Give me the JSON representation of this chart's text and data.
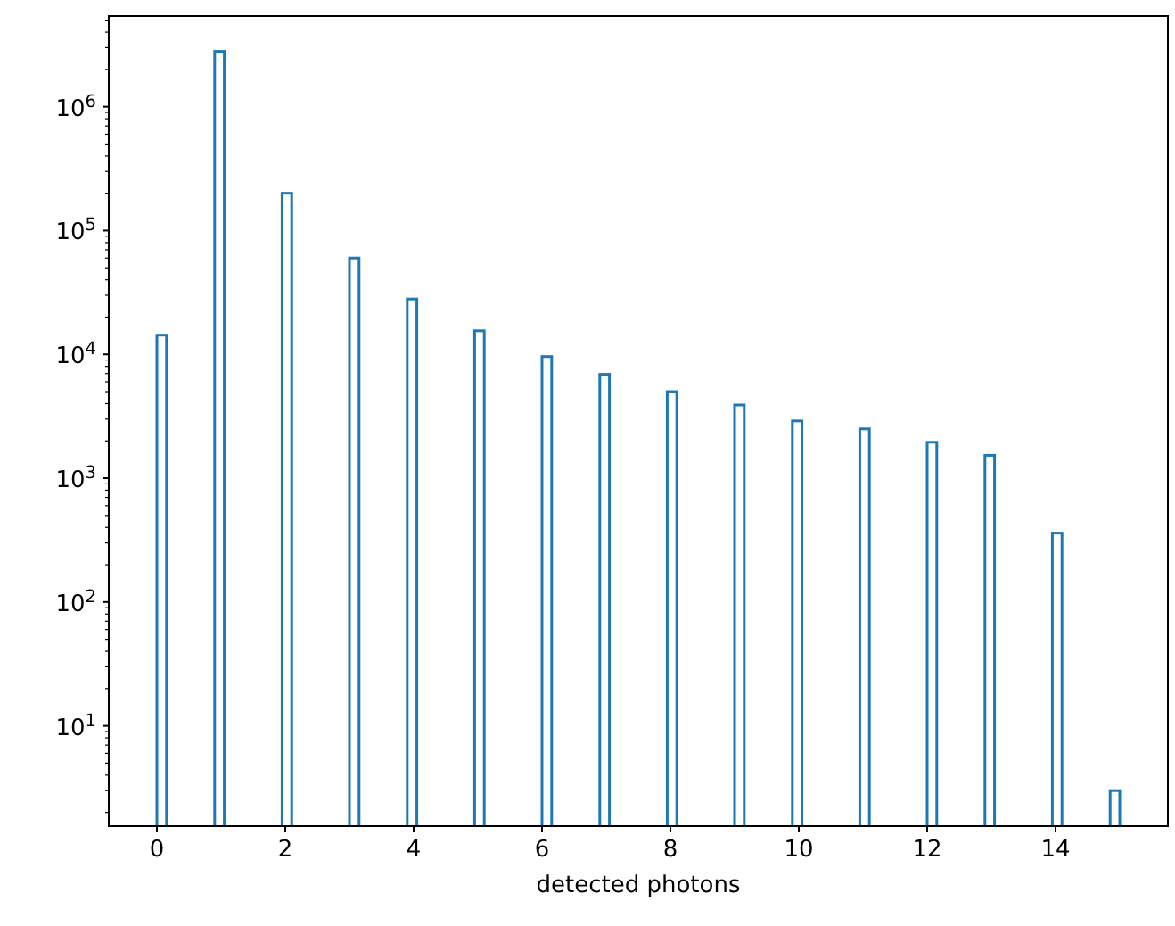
{
  "chart_data": {
    "type": "histogram",
    "xlabel": "detected photons",
    "color": "#1f77b4",
    "log": "y",
    "grid": false,
    "bins": [
      0,
      0.15,
      0.9,
      1.05,
      1.95,
      2.1,
      3.0,
      3.15,
      3.9,
      4.05,
      4.95,
      5.1,
      6.0,
      6.15,
      6.9,
      7.05,
      7.95,
      8.1,
      9.0,
      9.15,
      9.9,
      10.05,
      10.95,
      11.1,
      12.0,
      12.15,
      12.9,
      13.05,
      13.95,
      14.1,
      14.85,
      15
    ],
    "values": [
      14300,
      null,
      2800000,
      null,
      200000,
      null,
      60000,
      null,
      28000,
      null,
      15500,
      null,
      9600,
      null,
      6900,
      null,
      5000,
      null,
      3900,
      null,
      2900,
      null,
      2500,
      null,
      1950,
      null,
      1530,
      null,
      360,
      null,
      3
    ],
    "xlim": [
      -0.75,
      15.75
    ],
    "xticks": [
      0,
      2,
      4,
      6,
      8,
      10,
      12,
      14
    ],
    "ylim": [
      1.55,
      5400000
    ],
    "yticks": [
      {
        "value": 2,
        "label": null
      },
      {
        "value": 3,
        "label": null
      },
      {
        "value": 4,
        "label": null
      },
      {
        "value": 5,
        "label": null
      },
      {
        "value": 6,
        "label": null
      },
      {
        "value": 7,
        "label": null
      },
      {
        "value": 8,
        "label": null
      },
      {
        "value": 9,
        "label": null
      },
      {
        "value": 10,
        "label": "10$^{1}$"
      },
      {
        "value": 20,
        "label": null
      },
      {
        "value": 30,
        "label": null
      },
      {
        "value": 40,
        "label": null
      },
      {
        "value": 50,
        "label": null
      },
      {
        "value": 60,
        "label": null
      },
      {
        "value": 70,
        "label": null
      },
      {
        "value": 80,
        "label": null
      },
      {
        "value": 90,
        "label": null
      },
      {
        "value": 100,
        "label": "10$^{2}$"
      },
      {
        "value": 200,
        "label": null
      },
      {
        "value": 300,
        "label": null
      },
      {
        "value": 400,
        "label": null
      },
      {
        "value": 500,
        "label": null
      },
      {
        "value": 600,
        "label": null
      },
      {
        "value": 700,
        "label": null
      },
      {
        "value": 800,
        "label": null
      },
      {
        "value": 900,
        "label": null
      },
      {
        "value": 1000,
        "label": "10$^{3}$"
      },
      {
        "value": 2000,
        "label": null
      },
      {
        "value": 3000,
        "label": null
      },
      {
        "value": 4000,
        "label": null
      },
      {
        "value": 5000,
        "label": null
      },
      {
        "value": 6000,
        "label": null
      },
      {
        "value": 7000,
        "label": null
      },
      {
        "value": 8000,
        "label": null
      },
      {
        "value": 9000,
        "label": null
      },
      {
        "value": 10000,
        "label": "10$^{4}$"
      },
      {
        "value": 20000,
        "label": null
      },
      {
        "value": 30000,
        "label": null
      },
      {
        "value": 40000,
        "label": null
      },
      {
        "value": 50000,
        "label": null
      },
      {
        "value": 60000,
        "label": null
      },
      {
        "value": 70000,
        "label": null
      },
      {
        "value": 80000,
        "label": null
      },
      {
        "value": 90000,
        "label": null
      },
      {
        "value": 100000,
        "label": "10$^{5}$"
      },
      {
        "value": 200000,
        "label": null
      },
      {
        "value": 300000,
        "label": null
      },
      {
        "value": 400000,
        "label": null
      },
      {
        "value": 500000,
        "label": null
      },
      {
        "value": 600000,
        "label": null
      },
      {
        "value": 700000,
        "label": null
      },
      {
        "value": 800000,
        "label": null
      },
      {
        "value": 900000,
        "label": null
      },
      {
        "value": 1000000,
        "label": "10$^{6}$"
      },
      {
        "value": 2000000,
        "label": null
      },
      {
        "value": 3000000,
        "label": null
      },
      {
        "value": 4000000,
        "label": null
      },
      {
        "value": 5000000,
        "label": null
      }
    ]
  }
}
